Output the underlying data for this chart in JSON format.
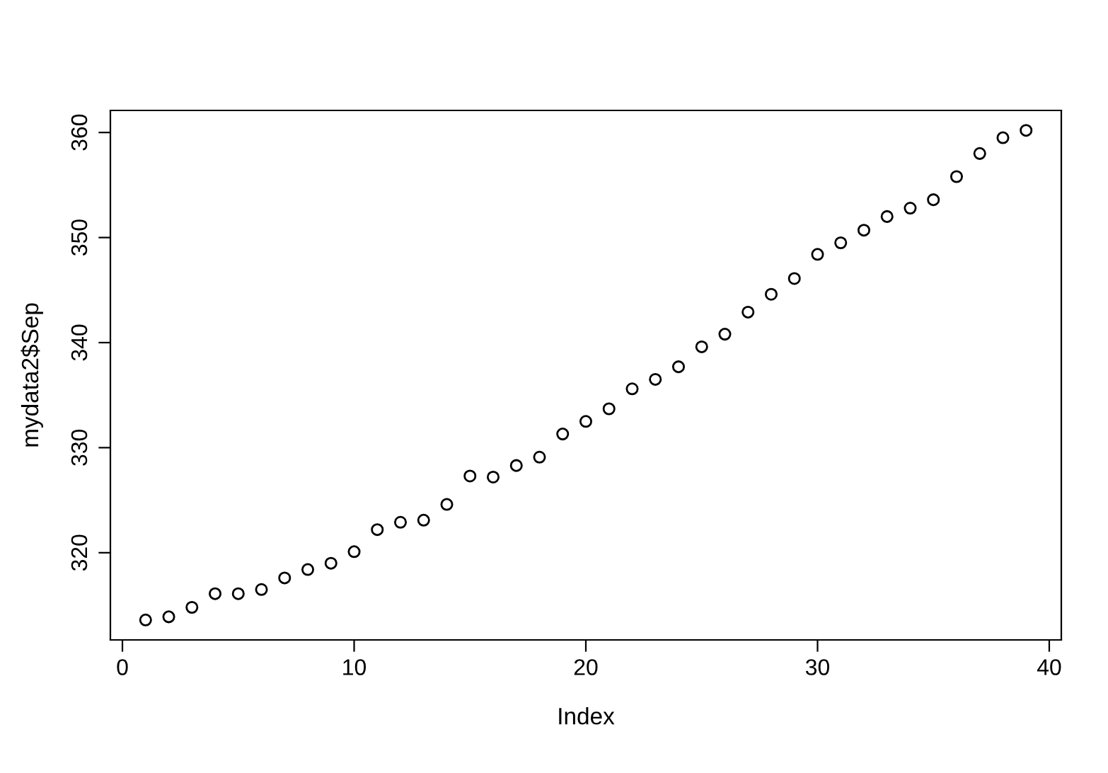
{
  "chart_data": {
    "type": "scatter",
    "xlabel": "Index",
    "ylabel": "mydata2$Sep",
    "x": [
      1,
      2,
      3,
      4,
      5,
      6,
      7,
      8,
      9,
      10,
      11,
      12,
      13,
      14,
      15,
      16,
      17,
      18,
      19,
      20,
      21,
      22,
      23,
      24,
      25,
      26,
      27,
      28,
      29,
      30,
      31,
      32,
      33,
      34,
      35,
      36,
      37,
      38,
      39
    ],
    "series": [
      {
        "color": "#000000",
        "values": [
          313.6,
          313.9,
          314.8,
          316.1,
          316.1,
          316.5,
          317.6,
          318.4,
          319.0,
          320.1,
          322.2,
          322.9,
          323.1,
          324.6,
          327.3,
          327.2,
          328.3,
          329.1,
          331.3,
          332.5,
          333.7,
          335.6,
          336.5,
          337.7,
          339.6,
          340.8,
          342.9,
          344.6,
          346.1,
          348.4,
          349.5,
          350.7,
          352.0,
          352.8,
          353.6,
          355.8,
          358.0,
          359.5,
          360.2
        ]
      }
    ],
    "xlim": [
      -0.52,
      40.52
    ],
    "ylim": [
      311.7,
      362.1
    ],
    "xticks": [
      0,
      10,
      20,
      30,
      40
    ],
    "yticks": [
      320,
      330,
      340,
      350,
      360
    ],
    "marker": "circle",
    "grid": false,
    "legend": false
  }
}
